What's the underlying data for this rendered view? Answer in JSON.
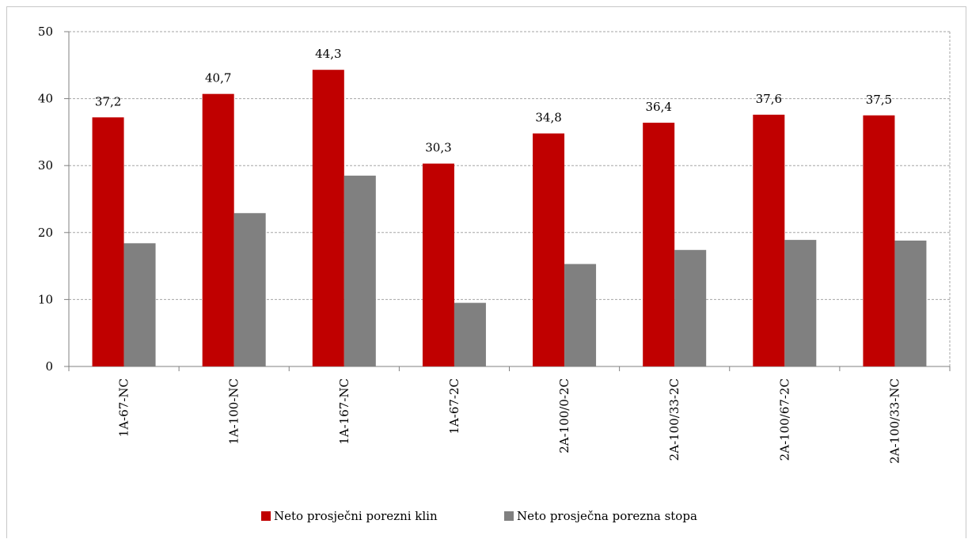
{
  "chart_data": {
    "type": "bar",
    "categories": [
      "1A-67-NC",
      "1A-100-NC",
      "1A-167-NC",
      "1A-67-2C",
      "2A-100/0-2C",
      "2A-100/33-2C",
      "2A-100/67-2C",
      "2A-100/33-NC"
    ],
    "series": [
      {
        "name": "Neto prosječni porezni klin",
        "color": "#c00000",
        "values": [
          37.2,
          40.7,
          44.3,
          30.3,
          34.8,
          36.4,
          37.6,
          37.5
        ],
        "data_labels": [
          "37,2",
          "40,7",
          "44,3",
          "30,3",
          "34,8",
          "36,4",
          "37,6",
          "37,5"
        ]
      },
      {
        "name": "Neto prosječna porezna stopa",
        "color": "#808080",
        "values": [
          18.4,
          22.9,
          28.5,
          9.5,
          15.3,
          17.4,
          18.9,
          18.8
        ]
      }
    ],
    "ylim": [
      0,
      50
    ],
    "yticks": [
      "0",
      "10",
      "20",
      "30",
      "40",
      "50"
    ],
    "grid": true,
    "legend_position": "bottom"
  }
}
